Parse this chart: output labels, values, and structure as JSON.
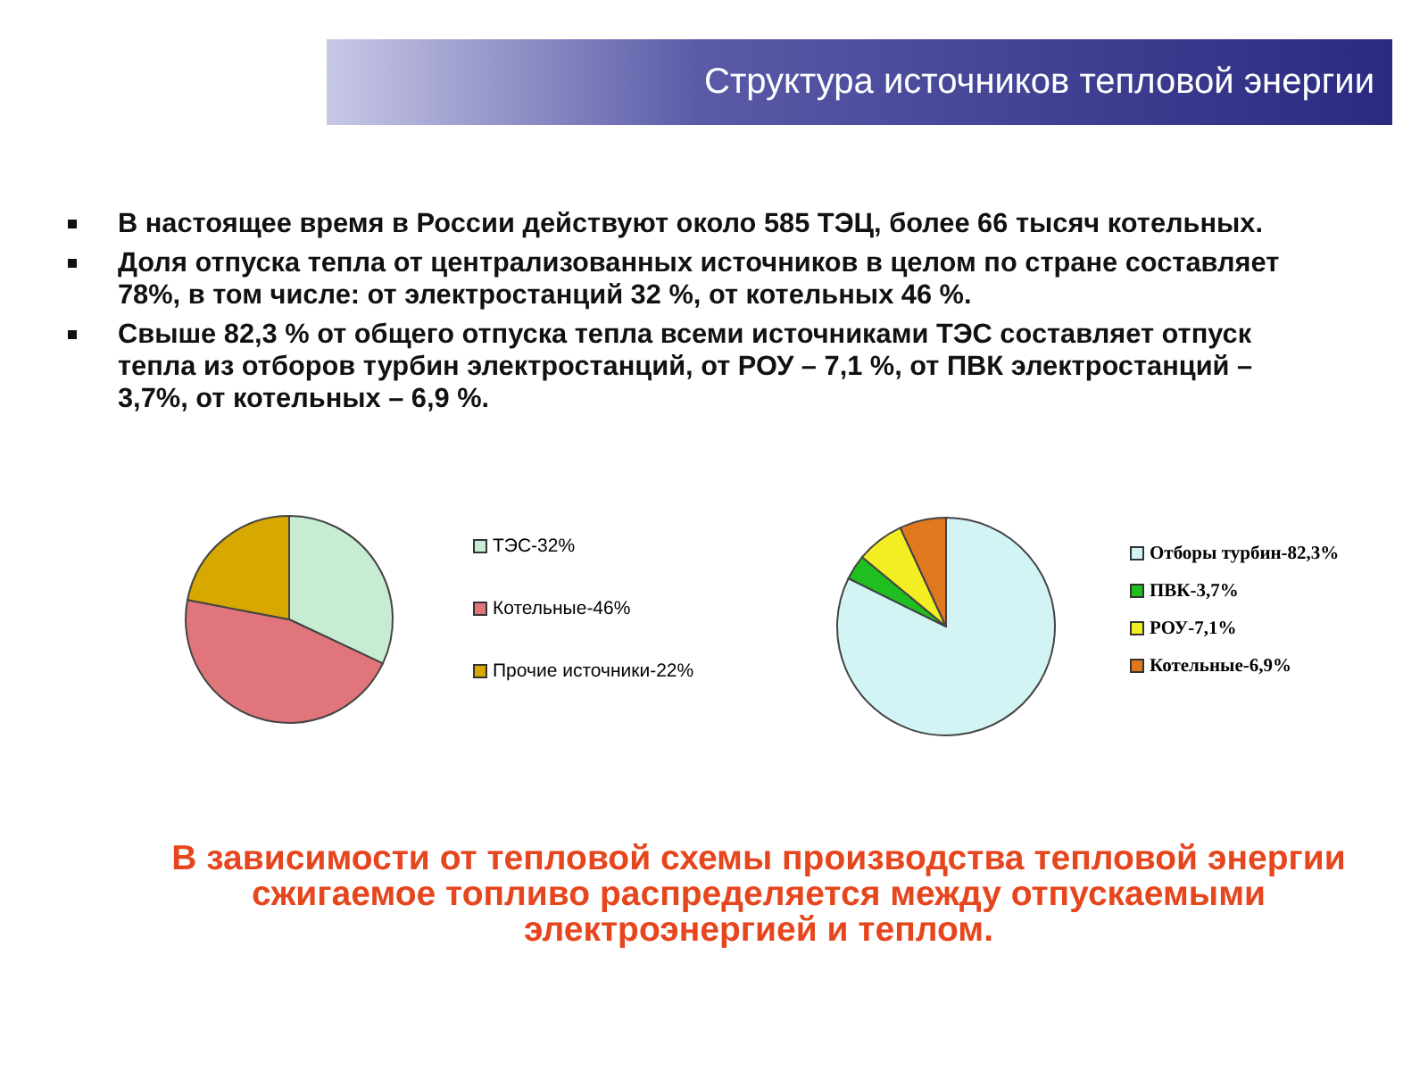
{
  "chart_data": [
    {
      "type": "other",
      "title": "Структура источников тепловой энергии",
      "annotations": [
        "В настоящее время в России действуют около 585 ТЭЦ, более 66 тысяч котельных.",
        "Доля отпуска тепла от централизованных источников в целом по стране составляет 78%, в том числе: от электростанций 32 %, от котельных 46 %.",
        "Свыше 82,3 % от общего отпуска тепла всеми источниками ТЭС составляет отпуск тепла из отборов турбин электростанций, от РОУ – 7,1 %, от ПВК электростанций – 3,7%, от котельных – 6,9 %."
      ]
    },
    {
      "type": "pie",
      "categories": [
        "ТЭС-32%",
        "Котельные-46%",
        "Прочие источники-22%"
      ],
      "values": [
        32,
        46,
        22
      ],
      "colors": [
        "#c8ecd2",
        "#e0767c",
        "#d6a800"
      ],
      "legend": "right"
    },
    {
      "type": "pie",
      "categories": [
        "Отборы турбин-82,3%",
        "ПВК-3,7%",
        "РОУ-7,1%",
        "Котельные-6,9%"
      ],
      "values": [
        82.3,
        3.7,
        7.1,
        6.9
      ],
      "colors": [
        "#d2f4f4",
        "#1fbf1f",
        "#f2ee22",
        "#e07820"
      ],
      "legend": "right"
    },
    {
      "type": "other",
      "annotations": [
        "В зависимости от тепловой схемы производства тепловой энергии сжигаемое топливо распределяется между отпускаемыми электроэнергией и теплом."
      ]
    }
  ]
}
